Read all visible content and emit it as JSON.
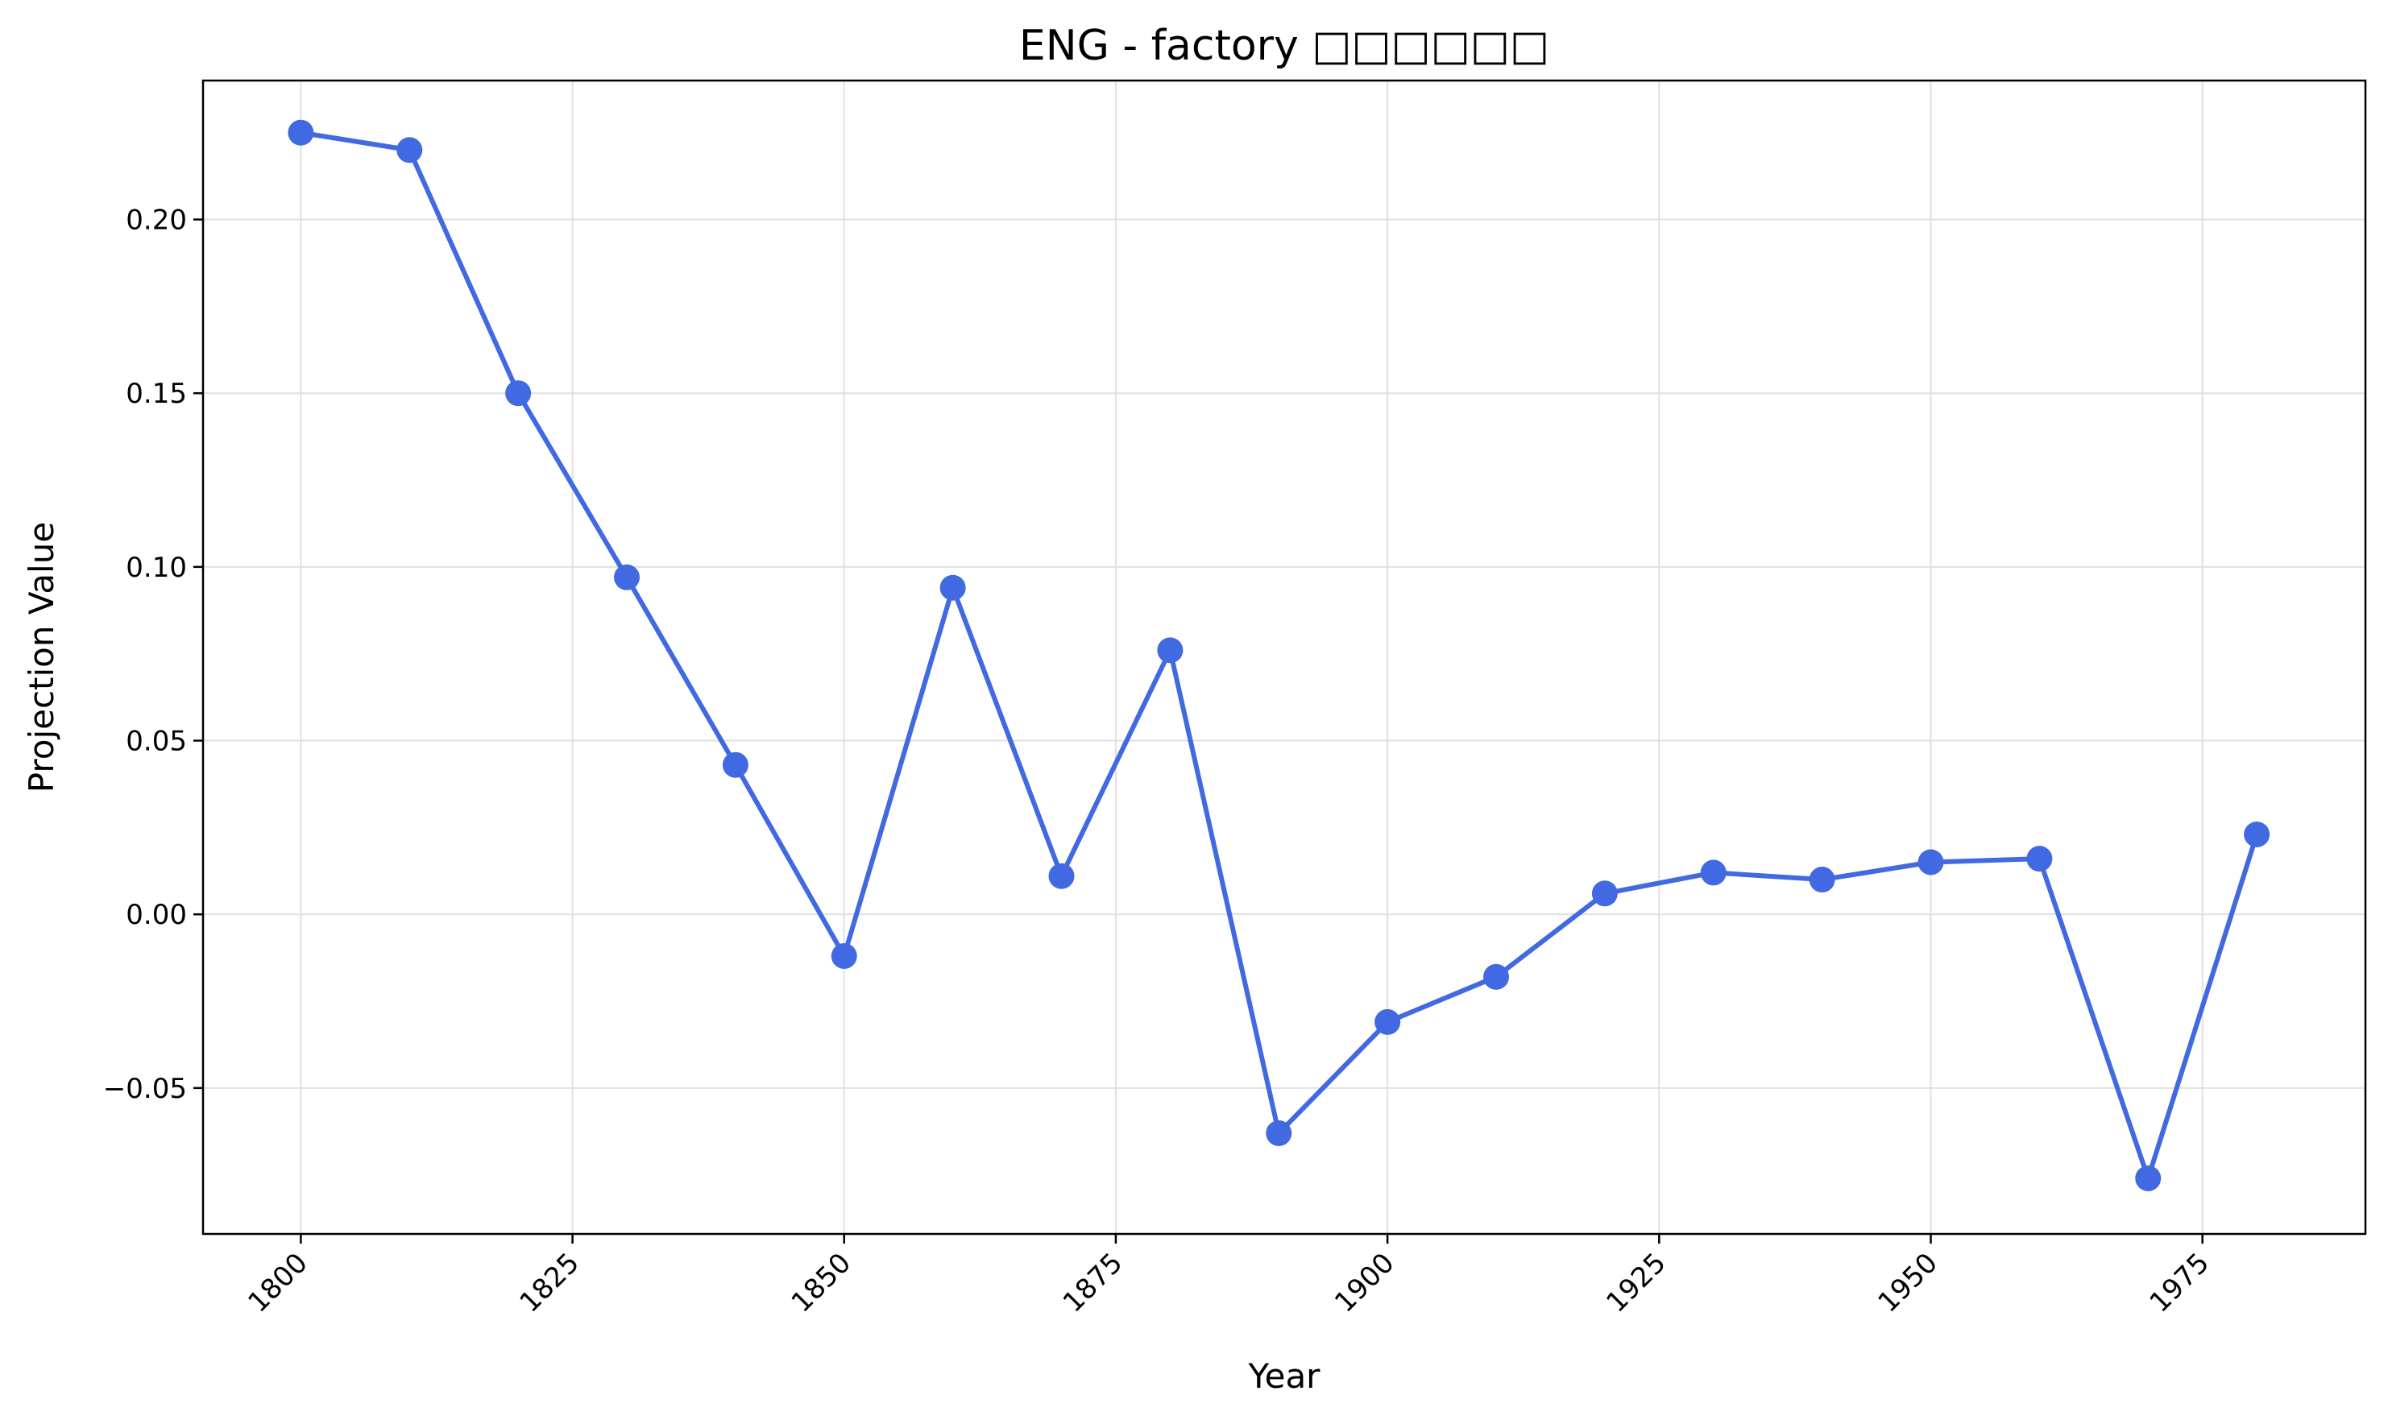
{
  "chart_data": {
    "type": "line",
    "title": "ENG - factory □□□□□□",
    "xlabel": "Year",
    "ylabel": "Projection Value",
    "xlim": [
      1791,
      1990
    ],
    "ylim": [
      -0.092,
      0.24
    ],
    "x_ticks": [
      1800,
      1825,
      1850,
      1875,
      1900,
      1925,
      1950,
      1975
    ],
    "x_tick_labels": [
      "1800",
      "1825",
      "1850",
      "1875",
      "1900",
      "1925",
      "1950",
      "1975"
    ],
    "y_ticks": [
      -0.05,
      0.0,
      0.05,
      0.1,
      0.15,
      0.2
    ],
    "y_tick_labels": [
      "−0.05",
      "0.00",
      "0.05",
      "0.10",
      "0.15",
      "0.20"
    ],
    "grid": true,
    "colors": {
      "line": "#4169e1",
      "grid": "#e0e0e0",
      "axes": "#000000"
    },
    "series": [
      {
        "x": [
          1800,
          1810,
          1820,
          1830,
          1840,
          1850,
          1860,
          1870,
          1880,
          1890,
          1900,
          1910,
          1920,
          1930,
          1940,
          1950,
          1960,
          1970,
          1980
        ],
        "values": [
          0.225,
          0.22,
          0.15,
          0.097,
          0.043,
          -0.012,
          0.094,
          0.011,
          0.076,
          -0.063,
          -0.031,
          -0.018,
          0.006,
          0.012,
          0.01,
          0.015,
          0.016,
          -0.076,
          0.023
        ]
      }
    ]
  }
}
